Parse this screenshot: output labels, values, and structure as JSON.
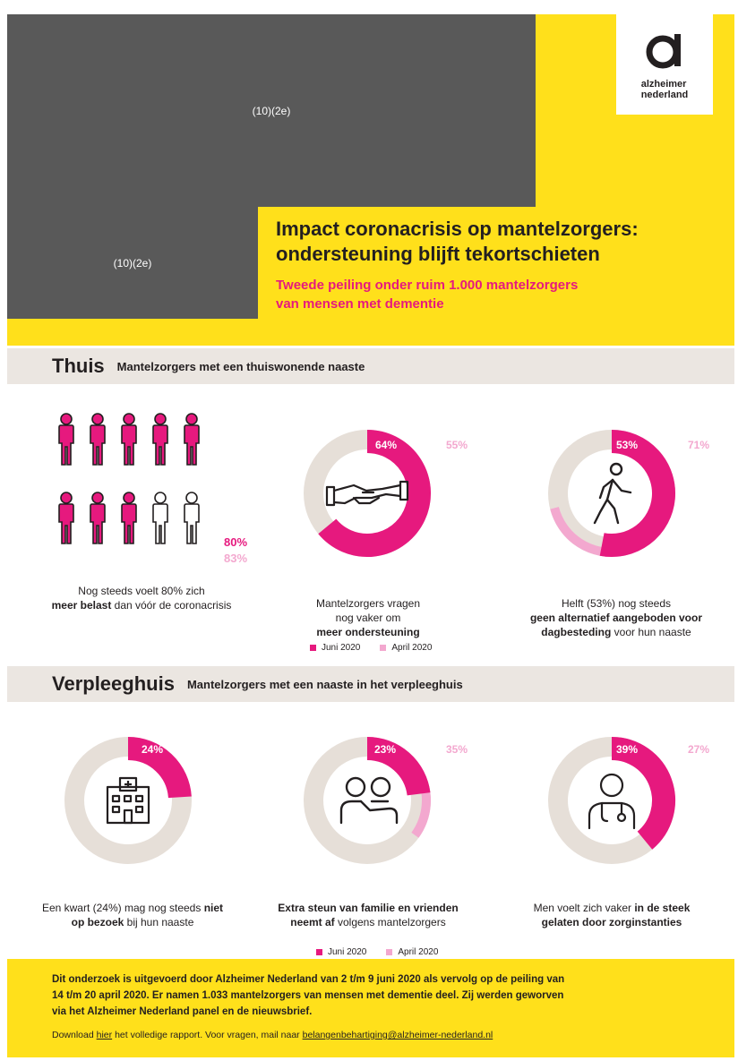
{
  "header": {
    "redaction_label_1": "(10)(2e)",
    "redaction_label_2": "(10)(2e)",
    "logo_line1": "alzheimer",
    "logo_line2": "nederland",
    "title_line1": "Impact coronacrisis op mantelzorgers:",
    "title_line2": "ondersteuning blijft tekortschieten",
    "subtitle_line1": "Tweede peiling onder ruim 1.000 mantelzorgers",
    "subtitle_line2": "van mensen met dementie"
  },
  "colors": {
    "yellow": "#ffe01b",
    "magenta": "#e6197e",
    "light_pink": "#f3a8cf",
    "beige": "#e6dfd8",
    "gray_bar": "#ebe6e1"
  },
  "section_home": {
    "title": "Thuis",
    "subtitle": "Mantelzorgers met een thuiswonende naaste",
    "people_stat": {
      "current_pct": "80%",
      "previous_pct": "83%",
      "filled_of_10": 8,
      "caption_pre": "Nog steeds voelt 80% zich",
      "caption_bold": "meer belast",
      "caption_post": "dan vóór de coronacrisis"
    },
    "donut_support": {
      "icon": "handshake-icon",
      "current_value": 64,
      "previous_value": 55,
      "current_label": "64%",
      "previous_label": "55%",
      "caption_line1": "Mantelzorgers vragen",
      "caption_line2": "nog vaker om",
      "caption_bold": "meer ondersteuning"
    },
    "donut_daycare": {
      "icon": "walking-person-icon",
      "current_value": 53,
      "previous_value": 71,
      "current_label": "53%",
      "previous_label": "71%",
      "caption_line1": "Helft (53%) nog steeds",
      "caption_bold": "geen alternatief aangeboden voor dagbesteding",
      "caption_post": "voor hun naaste"
    },
    "legend": {
      "current": "Juni 2020",
      "previous": "April 2020"
    }
  },
  "section_nursing": {
    "title": "Verpleeghuis",
    "subtitle": "Mantelzorgers met een naaste in het verpleeghuis",
    "donut_visit": {
      "icon": "hospital-icon",
      "current_value": 24,
      "current_label": "24%",
      "caption_pre": "Een kwart (24%) mag nog steeds",
      "caption_bold": "niet op bezoek",
      "caption_post": "bij hun naaste"
    },
    "donut_family": {
      "icon": "people-support-icon",
      "current_value": 23,
      "previous_value": 35,
      "current_label": "23%",
      "previous_label": "35%",
      "caption_bold": "Extra steun van familie en vrienden neemt af",
      "caption_post": "volgens mantelzorgers"
    },
    "donut_care": {
      "icon": "doctor-icon",
      "current_value": 39,
      "previous_value": 27,
      "current_label": "39%",
      "previous_label": "27%",
      "caption_pre": "Men voelt zich vaker",
      "caption_bold": "in de steek gelaten door zorginstanties"
    },
    "legend": {
      "current": "Juni 2020",
      "previous": "April 2020"
    }
  },
  "footer": {
    "text_line1": "Dit onderzoek is uitgevoerd door Alzheimer Nederland van 2 t/m 9 juni 2020 als vervolg op de peiling van",
    "text_line2": "14 t/m 20 april 2020. Er namen 1.033 mantelzorgers van mensen met dementie deel. Zij werden geworven",
    "text_line3": "via het Alzheimer Nederland panel en de nieuwsbrief.",
    "download_pre": "Download",
    "download_link": "hier",
    "download_post": "het volledige rapport. Voor vragen, mail naar",
    "email": "belangenbehartiging@alzheimer-nederland.nl"
  }
}
